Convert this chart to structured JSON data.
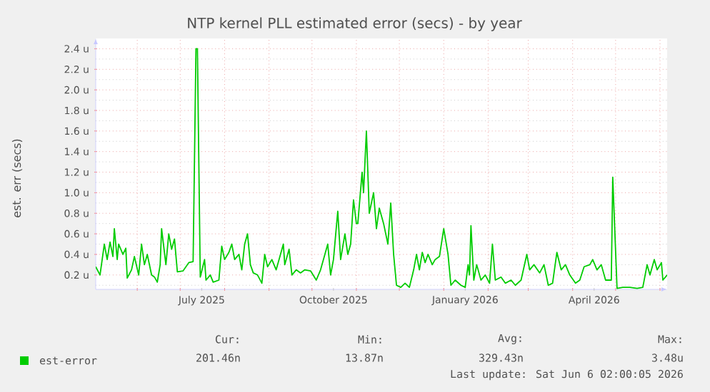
{
  "chart_data": {
    "type": "line",
    "title": "NTP kernel PLL estimated error (secs) - by year",
    "ylabel": "est. err (secs)",
    "x": [
      "2025-05-03",
      "2025-05-06",
      "2025-05-09",
      "2025-05-11",
      "2025-05-13",
      "2025-05-15",
      "2025-05-16",
      "2025-05-18",
      "2025-05-19",
      "2025-05-22",
      "2025-05-24",
      "2025-05-25",
      "2025-05-28",
      "2025-05-30",
      "2025-06-02",
      "2025-06-04",
      "2025-06-06",
      "2025-06-08",
      "2025-06-11",
      "2025-06-13",
      "2025-06-15",
      "2025-06-17",
      "2025-06-18",
      "2025-06-21",
      "2025-06-23",
      "2025-06-25",
      "2025-06-27",
      "2025-06-29",
      "2025-07-03",
      "2025-07-07",
      "2025-07-10",
      "2025-07-12",
      "2025-07-13",
      "2025-07-15",
      "2025-07-18",
      "2025-07-19",
      "2025-07-22",
      "2025-07-24",
      "2025-07-28",
      "2025-07-30",
      "2025-08-01",
      "2025-08-04",
      "2025-08-06",
      "2025-08-08",
      "2025-08-11",
      "2025-08-13",
      "2025-08-15",
      "2025-08-17",
      "2025-08-19",
      "2025-08-21",
      "2025-08-24",
      "2025-08-27",
      "2025-08-29",
      "2025-08-31",
      "2025-09-03",
      "2025-09-06",
      "2025-09-08",
      "2025-09-11",
      "2025-09-12",
      "2025-09-15",
      "2025-09-17",
      "2025-09-20",
      "2025-09-23",
      "2025-09-26",
      "2025-09-30",
      "2025-10-04",
      "2025-10-07",
      "2025-10-10",
      "2025-10-12",
      "2025-10-14",
      "2025-10-16",
      "2025-10-19",
      "2025-10-21",
      "2025-10-24",
      "2025-10-26",
      "2025-10-28",
      "2025-10-30",
      "2025-11-01",
      "2025-11-02",
      "2025-11-05",
      "2025-11-06",
      "2025-11-08",
      "2025-11-10",
      "2025-11-13",
      "2025-11-15",
      "2025-11-17",
      "2025-11-20",
      "2025-11-23",
      "2025-11-25",
      "2025-11-27",
      "2025-11-29",
      "2025-12-02",
      "2025-12-05",
      "2025-12-08",
      "2025-12-11",
      "2025-12-13",
      "2025-12-15",
      "2025-12-17",
      "2025-12-19",
      "2025-12-21",
      "2025-12-24",
      "2025-12-26",
      "2025-12-29",
      "2026-01-01",
      "2026-01-04",
      "2026-01-06",
      "2026-01-09",
      "2026-01-13",
      "2026-01-16",
      "2026-01-18",
      "2026-01-19",
      "2026-01-20",
      "2026-01-22",
      "2026-01-24",
      "2026-01-27",
      "2026-01-30",
      "2026-02-02",
      "2026-02-04",
      "2026-02-06",
      "2026-02-10",
      "2026-02-13",
      "2026-02-17",
      "2026-02-20",
      "2026-02-24",
      "2026-02-28",
      "2026-03-02",
      "2026-03-05",
      "2026-03-09",
      "2026-03-12",
      "2026-03-15",
      "2026-03-18",
      "2026-03-21",
      "2026-03-24",
      "2026-03-27",
      "2026-03-30",
      "2026-04-03",
      "2026-04-06",
      "2026-04-09",
      "2026-04-13",
      "2026-04-15",
      "2026-04-18",
      "2026-04-21",
      "2026-04-24",
      "2026-04-28",
      "2026-04-29",
      "2026-05-02",
      "2026-05-06",
      "2026-05-11",
      "2026-05-16",
      "2026-05-20",
      "2026-05-23",
      "2026-05-25",
      "2026-05-28",
      "2026-05-30",
      "2026-06-02",
      "2026-06-03",
      "2026-06-06"
    ],
    "series": [
      {
        "name": "est-error",
        "color": "#00cc00",
        "values": [
          0.28,
          0.2,
          0.5,
          0.35,
          0.52,
          0.38,
          0.65,
          0.35,
          0.5,
          0.4,
          0.46,
          0.17,
          0.25,
          0.38,
          0.2,
          0.5,
          0.3,
          0.4,
          0.2,
          0.18,
          0.13,
          0.3,
          0.65,
          0.3,
          0.6,
          0.45,
          0.55,
          0.23,
          0.24,
          0.32,
          0.33,
          2.4,
          2.4,
          0.18,
          0.35,
          0.15,
          0.2,
          0.13,
          0.15,
          0.48,
          0.35,
          0.42,
          0.5,
          0.35,
          0.4,
          0.25,
          0.5,
          0.6,
          0.3,
          0.22,
          0.2,
          0.12,
          0.4,
          0.28,
          0.35,
          0.25,
          0.35,
          0.5,
          0.3,
          0.45,
          0.2,
          0.25,
          0.22,
          0.25,
          0.24,
          0.15,
          0.25,
          0.4,
          0.5,
          0.2,
          0.35,
          0.82,
          0.35,
          0.6,
          0.4,
          0.5,
          0.93,
          0.7,
          0.7,
          1.2,
          1.0,
          1.6,
          0.8,
          1.0,
          0.65,
          0.85,
          0.7,
          0.5,
          0.9,
          0.4,
          0.1,
          0.08,
          0.12,
          0.08,
          0.25,
          0.4,
          0.25,
          0.42,
          0.32,
          0.4,
          0.3,
          0.35,
          0.38,
          0.65,
          0.4,
          0.1,
          0.15,
          0.1,
          0.08,
          0.3,
          0.2,
          0.68,
          0.15,
          0.3,
          0.15,
          0.2,
          0.12,
          0.5,
          0.15,
          0.18,
          0.12,
          0.15,
          0.1,
          0.15,
          0.4,
          0.25,
          0.3,
          0.22,
          0.3,
          0.1,
          0.12,
          0.42,
          0.25,
          0.3,
          0.2,
          0.12,
          0.15,
          0.28,
          0.3,
          0.35,
          0.25,
          0.3,
          0.15,
          0.15,
          1.15,
          0.07,
          0.08,
          0.08,
          0.07,
          0.08,
          0.3,
          0.2,
          0.35,
          0.25,
          0.32,
          0.15,
          0.2
        ]
      }
    ],
    "xlim": [
      "2025-05-03",
      "2026-06-06"
    ],
    "xticks": [
      {
        "value": "2025-06-01",
        "label": null
      },
      {
        "value": "2025-07-01",
        "label": null
      },
      {
        "value": "2025-07-16",
        "label": "July 2025"
      },
      {
        "value": "2025-08-01",
        "label": null
      },
      {
        "value": "2025-09-01",
        "label": null
      },
      {
        "value": "2025-10-01",
        "label": null
      },
      {
        "value": "2025-10-16",
        "label": "October 2025"
      },
      {
        "value": "2025-11-01",
        "label": null
      },
      {
        "value": "2025-12-01",
        "label": null
      },
      {
        "value": "2026-01-01",
        "label": null
      },
      {
        "value": "2026-01-16",
        "label": "January 2026"
      },
      {
        "value": "2026-02-01",
        "label": null
      },
      {
        "value": "2026-03-01",
        "label": null
      },
      {
        "value": "2026-04-01",
        "label": null
      },
      {
        "value": "2026-04-16",
        "label": "April 2026"
      },
      {
        "value": "2026-05-01",
        "label": null
      },
      {
        "value": "2026-06-01",
        "label": null
      }
    ],
    "ylim": [
      0.06,
      2.5
    ],
    "yticks": [
      {
        "value": 0.1,
        "label": null
      },
      {
        "value": 0.2,
        "label": "0.2 u"
      },
      {
        "value": 0.3,
        "label": null
      },
      {
        "value": 0.4,
        "label": "0.4 u"
      },
      {
        "value": 0.5,
        "label": null
      },
      {
        "value": 0.6,
        "label": "0.6 u"
      },
      {
        "value": 0.7,
        "label": null
      },
      {
        "value": 0.8,
        "label": "0.8 u"
      },
      {
        "value": 0.9,
        "label": null
      },
      {
        "value": 1.0,
        "label": "1.0 u"
      },
      {
        "value": 1.1,
        "label": null
      },
      {
        "value": 1.2,
        "label": "1.2 u"
      },
      {
        "value": 1.3,
        "label": null
      },
      {
        "value": 1.4,
        "label": "1.4 u"
      },
      {
        "value": 1.5,
        "label": null
      },
      {
        "value": 1.6,
        "label": "1.6 u"
      },
      {
        "value": 1.7,
        "label": null
      },
      {
        "value": 1.8,
        "label": "1.8 u"
      },
      {
        "value": 1.9,
        "label": null
      },
      {
        "value": 2.0,
        "label": "2.0 u"
      },
      {
        "value": 2.1,
        "label": null
      },
      {
        "value": 2.2,
        "label": "2.2 u"
      },
      {
        "value": 2.3,
        "label": null
      },
      {
        "value": 2.4,
        "label": "2.4 u"
      }
    ],
    "grid": true,
    "legend": "bottom",
    "marker": "none",
    "line_style": "solid",
    "annotations": [
      "Cur:",
      "Min:",
      "Avg:",
      "Max:",
      "201.46n",
      "13.87n",
      "329.43n",
      "3.48u",
      "Last update: Sat Jun 6 02:00:05 2026"
    ]
  }
}
